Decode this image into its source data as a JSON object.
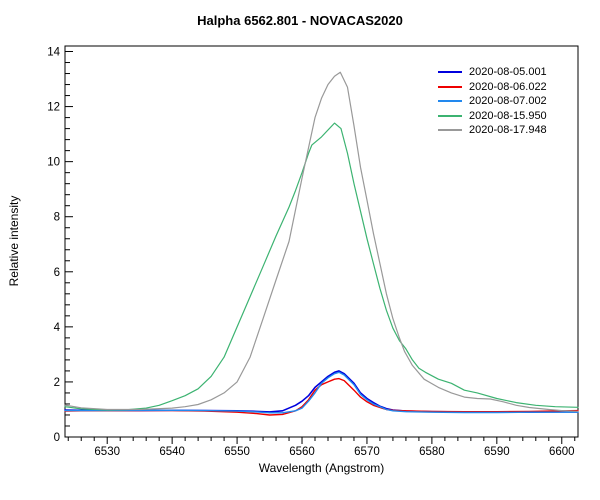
{
  "title": "Halpha 6562.801 - NOVACAS2020",
  "chart_data": {
    "type": "line",
    "title": "Halpha 6562.801 - NOVACAS2020",
    "xlabel": "Wavelength (Angstrom)",
    "ylabel": "Relative intensity",
    "xlim": [
      6523.5,
      6602.5
    ],
    "ylim": [
      0,
      14.2
    ],
    "x_minor_step": 2,
    "x_major_every": 10,
    "y_minor_step": 0.4,
    "y_major_every": 2,
    "grid": false,
    "legend_position": "top-right-inside",
    "axis_color": "#000000",
    "series": [
      {
        "name": "2020-08-05.001",
        "color": "#0000dd",
        "stroke_width": 1.6,
        "points": [
          [
            6523.5,
            0.98
          ],
          [
            6526,
            0.97
          ],
          [
            6530,
            0.96
          ],
          [
            6535,
            0.96
          ],
          [
            6540,
            0.97
          ],
          [
            6545,
            0.96
          ],
          [
            6550,
            0.95
          ],
          [
            6553,
            0.93
          ],
          [
            6555,
            0.91
          ],
          [
            6557,
            0.95
          ],
          [
            6559,
            1.15
          ],
          [
            6560,
            1.3
          ],
          [
            6561,
            1.5
          ],
          [
            6562,
            1.8
          ],
          [
            6563,
            2.0
          ],
          [
            6564,
            2.2
          ],
          [
            6565,
            2.35
          ],
          [
            6565.7,
            2.4
          ],
          [
            6566.5,
            2.3
          ],
          [
            6568,
            1.95
          ],
          [
            6569,
            1.6
          ],
          [
            6570,
            1.4
          ],
          [
            6571,
            1.25
          ],
          [
            6572,
            1.12
          ],
          [
            6573,
            1.03
          ],
          [
            6574,
            0.98
          ],
          [
            6576,
            0.94
          ],
          [
            6580,
            0.92
          ],
          [
            6585,
            0.91
          ],
          [
            6590,
            0.9
          ],
          [
            6595,
            0.9
          ],
          [
            6600,
            0.91
          ],
          [
            6602.5,
            0.91
          ]
        ]
      },
      {
        "name": "2020-08-06.022",
        "color": "#ee0000",
        "stroke_width": 1.4,
        "points": [
          [
            6523.5,
            0.94
          ],
          [
            6526,
            0.95
          ],
          [
            6530,
            0.95
          ],
          [
            6535,
            0.96
          ],
          [
            6540,
            0.96
          ],
          [
            6545,
            0.94
          ],
          [
            6550,
            0.9
          ],
          [
            6553,
            0.85
          ],
          [
            6555,
            0.8
          ],
          [
            6557,
            0.82
          ],
          [
            6559,
            0.95
          ],
          [
            6560,
            1.1
          ],
          [
            6561,
            1.35
          ],
          [
            6562,
            1.7
          ],
          [
            6563,
            1.9
          ],
          [
            6564,
            2.0
          ],
          [
            6565,
            2.1
          ],
          [
            6565.7,
            2.12
          ],
          [
            6566.5,
            2.05
          ],
          [
            6568,
            1.7
          ],
          [
            6569,
            1.45
          ],
          [
            6570,
            1.28
          ],
          [
            6571,
            1.15
          ],
          [
            6572,
            1.07
          ],
          [
            6573,
            1.0
          ],
          [
            6574,
            0.97
          ],
          [
            6576,
            0.95
          ],
          [
            6580,
            0.93
          ],
          [
            6585,
            0.92
          ],
          [
            6590,
            0.92
          ],
          [
            6595,
            0.93
          ],
          [
            6600,
            0.95
          ],
          [
            6602.5,
            0.96
          ]
        ]
      },
      {
        "name": "2020-08-07.002",
        "color": "#2288ee",
        "stroke_width": 1.4,
        "points": [
          [
            6523.5,
            0.96
          ],
          [
            6526,
            0.96
          ],
          [
            6530,
            0.96
          ],
          [
            6535,
            0.97
          ],
          [
            6540,
            0.97
          ],
          [
            6545,
            0.96
          ],
          [
            6550,
            0.94
          ],
          [
            6553,
            0.91
          ],
          [
            6555,
            0.88
          ],
          [
            6557,
            0.88
          ],
          [
            6559,
            0.95
          ],
          [
            6560,
            1.05
          ],
          [
            6561,
            1.3
          ],
          [
            6562,
            1.6
          ],
          [
            6563,
            1.95
          ],
          [
            6564,
            2.15
          ],
          [
            6565,
            2.3
          ],
          [
            6565.7,
            2.35
          ],
          [
            6566.5,
            2.25
          ],
          [
            6568,
            1.9
          ],
          [
            6569,
            1.55
          ],
          [
            6570,
            1.35
          ],
          [
            6571,
            1.2
          ],
          [
            6572,
            1.1
          ],
          [
            6573,
            1.0
          ],
          [
            6574,
            0.95
          ],
          [
            6576,
            0.92
          ],
          [
            6580,
            0.9
          ],
          [
            6585,
            0.89
          ],
          [
            6590,
            0.89
          ],
          [
            6595,
            0.9
          ],
          [
            6600,
            0.9
          ],
          [
            6602.5,
            0.9
          ]
        ]
      },
      {
        "name": "2020-08-15.950",
        "color": "#3cb371",
        "stroke_width": 1.2,
        "points": [
          [
            6523.5,
            1.1
          ],
          [
            6526,
            1.02
          ],
          [
            6530,
            0.98
          ],
          [
            6533,
            0.99
          ],
          [
            6536,
            1.05
          ],
          [
            6538,
            1.15
          ],
          [
            6540,
            1.32
          ],
          [
            6542,
            1.5
          ],
          [
            6544,
            1.75
          ],
          [
            6546,
            2.2
          ],
          [
            6548,
            2.9
          ],
          [
            6550,
            4.0
          ],
          [
            6552,
            5.1
          ],
          [
            6554,
            6.2
          ],
          [
            6556,
            7.3
          ],
          [
            6558,
            8.35
          ],
          [
            6559,
            8.95
          ],
          [
            6560,
            9.6
          ],
          [
            6561,
            10.3
          ],
          [
            6561.5,
            10.6
          ],
          [
            6563,
            10.9
          ],
          [
            6565,
            11.4
          ],
          [
            6566,
            11.2
          ],
          [
            6567,
            10.3
          ],
          [
            6568,
            9.2
          ],
          [
            6569,
            8.2
          ],
          [
            6570,
            7.2
          ],
          [
            6571,
            6.3
          ],
          [
            6572,
            5.4
          ],
          [
            6573,
            4.6
          ],
          [
            6574,
            3.95
          ],
          [
            6575,
            3.5
          ],
          [
            6576,
            3.2
          ],
          [
            6577,
            2.8
          ],
          [
            6578,
            2.5
          ],
          [
            6579,
            2.35
          ],
          [
            6581,
            2.1
          ],
          [
            6583,
            1.95
          ],
          [
            6585,
            1.7
          ],
          [
            6587,
            1.6
          ],
          [
            6590,
            1.4
          ],
          [
            6593,
            1.25
          ],
          [
            6596,
            1.15
          ],
          [
            6599,
            1.1
          ],
          [
            6602.5,
            1.08
          ]
        ]
      },
      {
        "name": "2020-08-17.948",
        "color": "#999999",
        "stroke_width": 1.2,
        "points": [
          [
            6523.5,
            1.16
          ],
          [
            6526,
            1.06
          ],
          [
            6530,
            1.0
          ],
          [
            6535,
            1.0
          ],
          [
            6540,
            1.05
          ],
          [
            6542,
            1.1
          ],
          [
            6544,
            1.18
          ],
          [
            6546,
            1.35
          ],
          [
            6548,
            1.6
          ],
          [
            6550,
            2.0
          ],
          [
            6552,
            2.9
          ],
          [
            6554,
            4.3
          ],
          [
            6556,
            5.7
          ],
          [
            6558,
            7.1
          ],
          [
            6560,
            9.4
          ],
          [
            6561,
            10.5
          ],
          [
            6562,
            11.6
          ],
          [
            6563,
            12.3
          ],
          [
            6564,
            12.8
          ],
          [
            6565,
            13.1
          ],
          [
            6565.9,
            13.25
          ],
          [
            6567,
            12.7
          ],
          [
            6568,
            11.3
          ],
          [
            6569,
            9.8
          ],
          [
            6570,
            8.6
          ],
          [
            6571,
            7.4
          ],
          [
            6572,
            6.3
          ],
          [
            6573,
            5.2
          ],
          [
            6574,
            4.3
          ],
          [
            6575,
            3.6
          ],
          [
            6575.8,
            3.1
          ],
          [
            6577,
            2.6
          ],
          [
            6578.8,
            2.1
          ],
          [
            6581,
            1.8
          ],
          [
            6583,
            1.6
          ],
          [
            6585,
            1.45
          ],
          [
            6587,
            1.4
          ],
          [
            6589,
            1.38
          ],
          [
            6591,
            1.28
          ],
          [
            6593,
            1.15
          ],
          [
            6595,
            1.07
          ],
          [
            6598,
            1.0
          ],
          [
            6600,
            0.96
          ],
          [
            6602.5,
            0.93
          ]
        ]
      }
    ]
  }
}
